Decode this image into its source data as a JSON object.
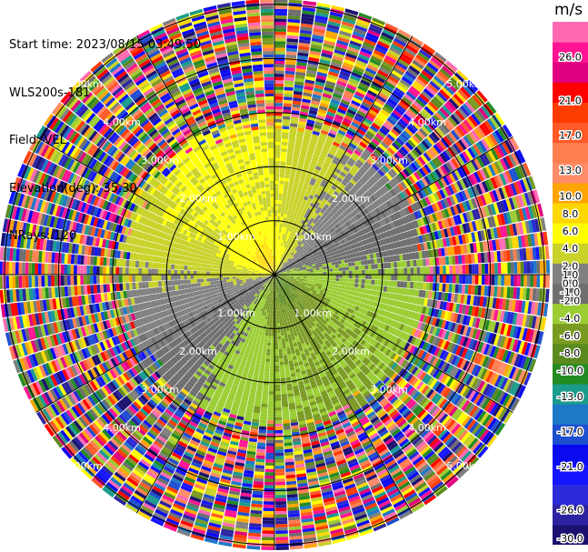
{
  "header": {
    "start_time": "Start time: 2023/08/15 03:49:50",
    "site": "WLS200s-181",
    "field": "Field: VEL",
    "elevation": "Elevation(deg): 35.30",
    "nrays": "NRays: 120"
  },
  "colorbar": {
    "unit": "m/s",
    "colors": [
      "#1a1170",
      "#2b23a0",
      "#2a2ad8",
      "#1414ff",
      "#0a0aee",
      "#1e4fd0",
      "#1e78c8",
      "#1a9c8c",
      "#228b22",
      "#5a8a1e",
      "#7a9a22",
      "#9acd32",
      "#6e6e6e",
      "#808080",
      "#c8d228",
      "#ffff00",
      "#ffd700",
      "#ffa500",
      "#ff8c69",
      "#ff7f50",
      "#ff5a28",
      "#ff3c00",
      "#ff0000",
      "#e00080",
      "#ff1493",
      "#ff69b4"
    ],
    "labels": [
      "-30.0",
      "-26.0",
      "-21.0",
      "-17.0",
      "-13.0",
      "-10.0",
      "-8.0",
      "-6.0",
      "-4.0",
      "-2.0",
      "-1.0",
      "0.0",
      "1.0",
      "2.0",
      "4.0",
      "6.0",
      "8.0",
      "10.0",
      "13.0",
      "17.0",
      "21.0",
      "26.0"
    ]
  },
  "range_rings": {
    "labels": [
      "1.00km",
      "2.00km",
      "3.00km",
      "4.00km",
      "5.00km"
    ]
  },
  "chart_data": {
    "type": "heatmap",
    "projection": "polar PPI",
    "field": "VEL",
    "units": "m/s",
    "nrays": 120,
    "range_rings_km": [
      1,
      2,
      3,
      4,
      5
    ],
    "max_range_km": 5.1,
    "colorbar_ticks": [
      -30.0,
      -26.0,
      -21.0,
      -17.0,
      -13.0,
      -10.0,
      -8.0,
      -6.0,
      -4.0,
      -2.0,
      -1.0,
      0.0,
      1.0,
      2.0,
      4.0,
      6.0,
      8.0,
      10.0,
      13.0,
      17.0,
      21.0,
      26.0
    ],
    "colorbar_range": [
      -30,
      30
    ],
    "valid_data_range_km": 3.0,
    "pattern": "north-west half positive (yellow/orange, max ~6-8 m/s near center), south-east half negative (green, ~ -4 to -6 m/s), zero line oriented roughly WSW-ENE; noise beyond ~3 km"
  }
}
